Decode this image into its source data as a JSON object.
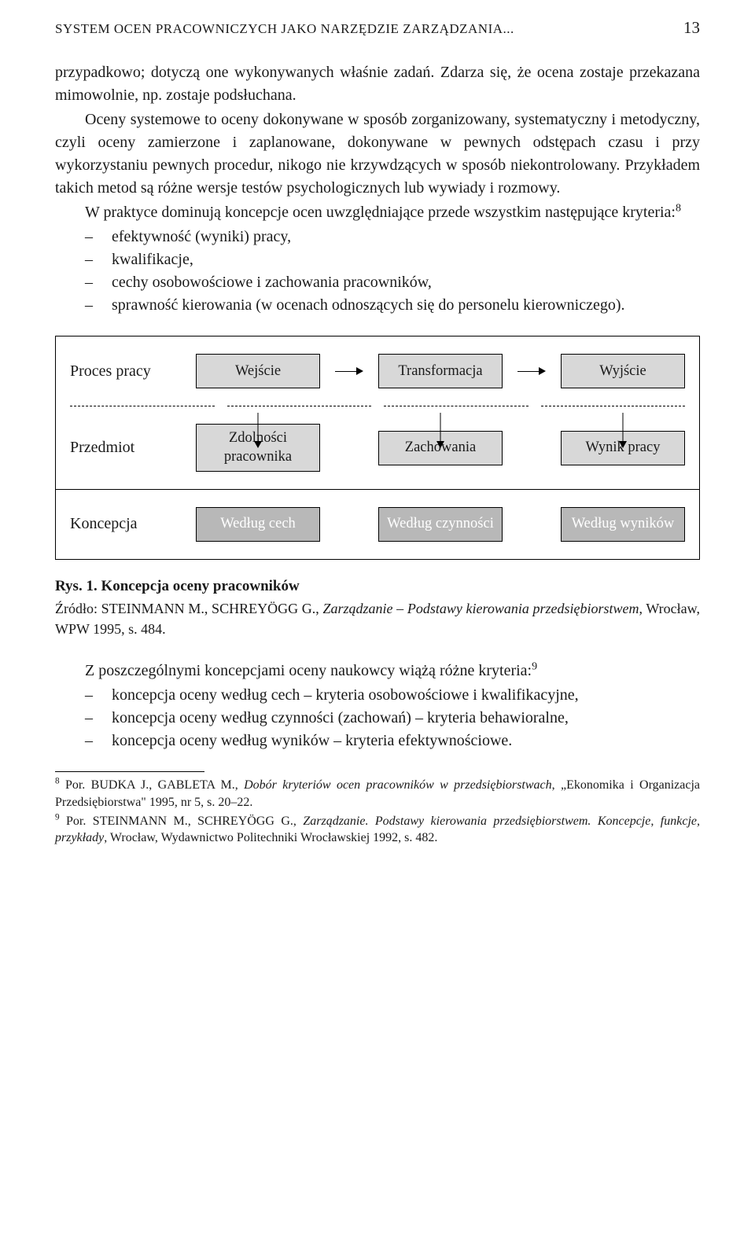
{
  "header": {
    "running_head": "SYSTEM OCEN PRACOWNICZYCH JAKO NARZĘDZIE ZARZĄDZANIA...",
    "page_number": "13"
  },
  "para1": "przypadkowo; dotyczą one wykonywanych właśnie zadań. Zdarza się, że ocena zostaje przekazana mimowolnie, np. zostaje podsłuchana.",
  "para2": "Oceny systemowe to oceny dokonywane w sposób zorganizowany, systematyczny i metodyczny, czyli oceny zamierzone i zaplanowane, dokonywane w pewnych odstępach czasu i przy wykorzystaniu pewnych procedur, nikogo nie krzywdzących w sposób niekontrolowany. Przykładem takich metod są różne wersje testów psychologicznych lub wywiady i rozmowy.",
  "para3_pre": "W praktyce dominują koncepcje ocen uwzględniające przede wszystkim następujące kryteria:",
  "para3_sup": "8",
  "list1": [
    "efektywność (wyniki) pracy,",
    "kwalifikacje,",
    "cechy osobowościowe i zachowania pracowników,",
    "sprawność kierowania (w ocenach odnoszących się do personelu kierowniczego)."
  ],
  "diagram": {
    "type": "flowchart",
    "border_color": "#000000",
    "fill_light": "#d8d8d8",
    "fill_dark": "#b8b8b8",
    "dark_text_color": "#ffffff",
    "rows": [
      {
        "label": "Proces pracy",
        "cells": [
          "Wejście",
          "Transformacja",
          "Wyjście"
        ],
        "fill": "light",
        "arrows_h": true
      },
      {
        "label": "Przedmiot",
        "cells": [
          "Zdolności pracownika",
          "Zachowania",
          "Wynik pracy"
        ],
        "fill": "light",
        "arrows_v": true
      },
      {
        "label": "Koncepcja",
        "cells": [
          "Według cech",
          "Według czynności",
          "Według wyników"
        ],
        "fill": "dark"
      }
    ]
  },
  "fig_caption_label": "Rys. 1. Koncepcja oceny pracowników",
  "fig_source_prefix": "Źródło: STEINMANN M., SCHREYÖGG G., ",
  "fig_source_italic": "Zarządzanie – Podstawy kierowania przedsiębiorstwem",
  "fig_source_suffix": ", Wrocław, WPW 1995, s. 484.",
  "para4_pre": "Z poszczególnymi koncepcjami oceny naukowcy wiążą różne kryteria:",
  "para4_sup": "9",
  "list2": [
    "koncepcja oceny według cech – kryteria osobowościowe i kwalifikacyjne,",
    "koncepcja oceny według czynności (zachowań) – kryteria behawioralne,",
    "koncepcja oceny według wyników – kryteria efektywnościowe."
  ],
  "footnotes": {
    "f8_sup": "8",
    "f8_a": " Por. BUDKA J., GABLETA M., ",
    "f8_i": "Dobór kryteriów ocen pracowników w przedsiębiorstwach",
    "f8_b": ", „Ekonomika i Organizacja Przedsiębiorstwa\" 1995, nr 5, s. 20–22.",
    "f9_sup": "9",
    "f9_a": " Por. STEINMANN M., SCHREYÖGG G., ",
    "f9_i1": "Zarządzanie. Podstawy kierowania przedsiębiorstwem. Koncepcje, funkcje, przykłady",
    "f9_b": ", Wrocław, Wydawnictwo Politechniki Wrocławskiej 1992, s. 482."
  }
}
